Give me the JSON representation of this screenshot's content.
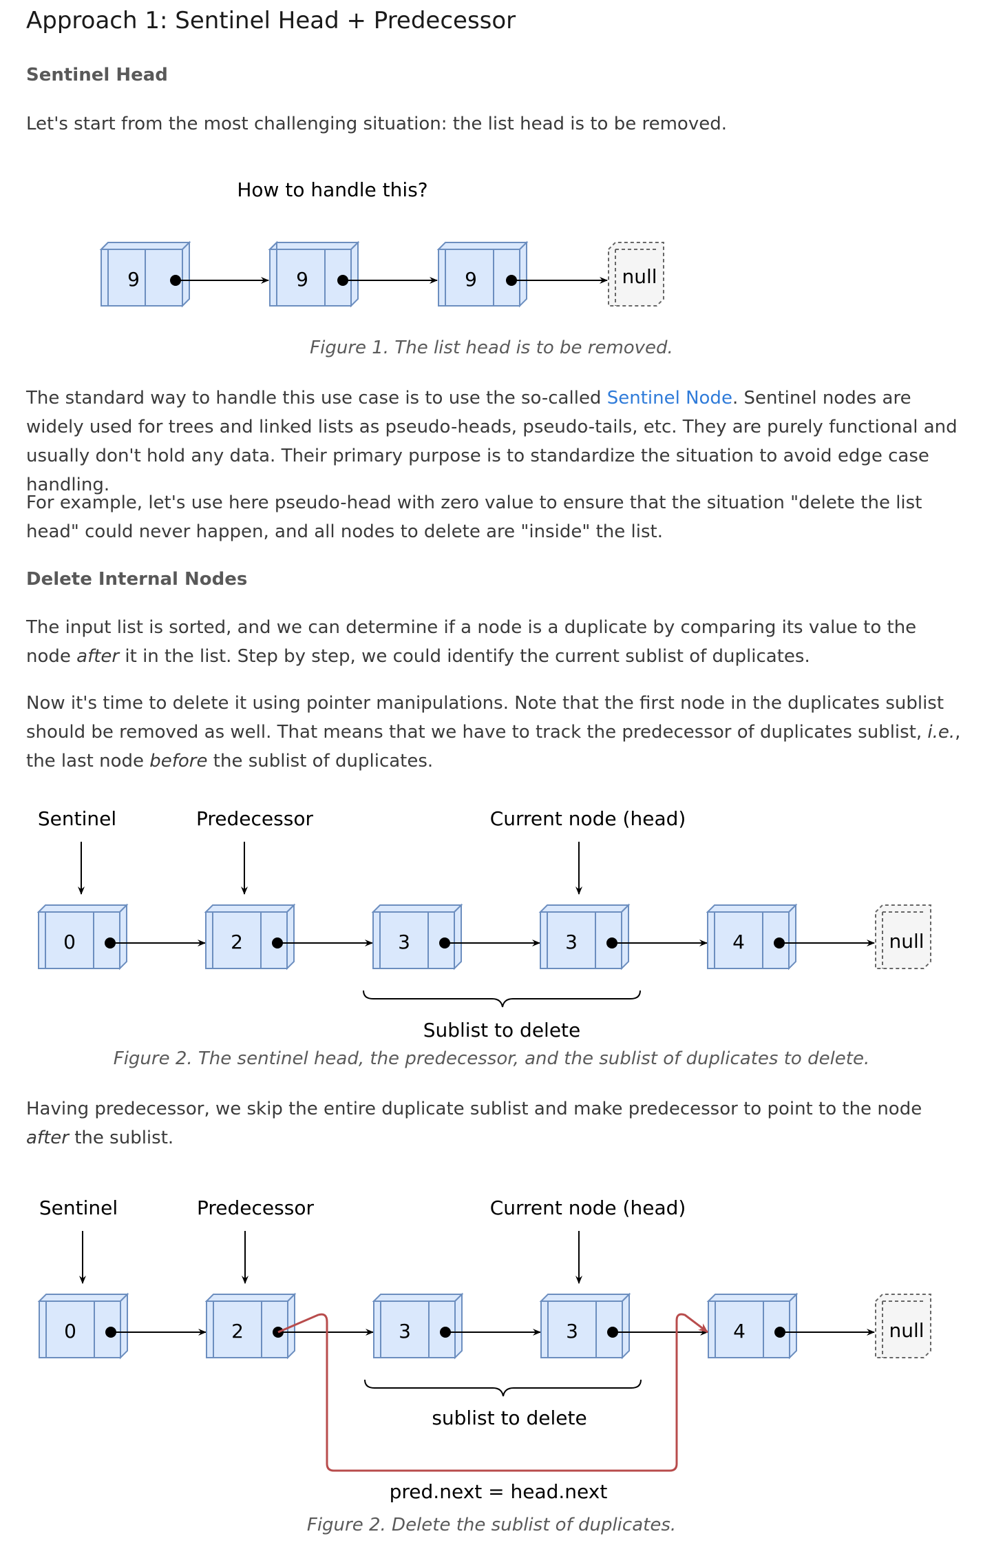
{
  "section_title": "Approach 1: Sentinel Head + Predecessor",
  "sub1": "Sentinel Head",
  "p1": "Let's start from the most challenging situation: the list head is to be removed.",
  "fig1": {
    "title": "How to handle this?",
    "nodes": [
      "9",
      "9",
      "9"
    ],
    "null_label": "null",
    "caption": "Figure 1. The list head is to be removed."
  },
  "p2": {
    "before": "The standard way to handle this use case is to use the so-called ",
    "link": "Sentinel Node",
    "after": ". Sentinel nodes are widely used for trees and linked lists as pseudo-heads, pseudo-tails, etc. They are purely functional and usually don't hold any data. Their primary purpose is to standardize the situation to avoid edge case handling."
  },
  "p3": "For example, let's use here pseudo-head with zero value to ensure that the situation \"delete the list head\" could never happen, and all nodes to delete are \"inside\" the list.",
  "sub2": "Delete Internal Nodes",
  "p4": {
    "a": "The input list is sorted, and we can determine if a node is a duplicate by comparing its value to the node ",
    "em": "after",
    "b": " it in the list. Step by step, we could identify the current sublist of duplicates."
  },
  "p5": {
    "a": "Now it's time to delete it using pointer manipulations. Note that the first node in the duplicates sublist should be removed as well. That means that we have to track the predecessor of duplicates sublist, ",
    "em1": "i.e.",
    "b": ", the last node ",
    "em2": "before",
    "c": " the sublist of duplicates."
  },
  "fig2": {
    "labels": [
      "Sentinel",
      "Predecessor",
      "Current node (head)"
    ],
    "nodes": [
      "0",
      "2",
      "3",
      "3",
      "4"
    ],
    "null_label": "null",
    "brace_label": "Sublist to delete",
    "caption": "Figure 2. The sentinel head, the predecessor, and the sublist of duplicates to delete."
  },
  "p6": {
    "a": "Having predecessor, we skip the entire duplicate sublist and make predecessor to point to the node ",
    "em": "after",
    "b": " the sublist."
  },
  "fig3": {
    "labels": [
      "Sentinel",
      "Predecessor",
      "Current node (head)"
    ],
    "nodes": [
      "0",
      "2",
      "3",
      "3",
      "4"
    ],
    "null_label": "null",
    "brace_label": "sublist to delete",
    "pointer_label": "pred.next = head.next",
    "caption": "Figure 2. Delete the sublist of duplicates.",
    "accent": "#b84c4c"
  },
  "colors": {
    "node_fill": "#dae8fc",
    "node_stroke": "#6c8ebf",
    "link": "#2f7bd9"
  }
}
